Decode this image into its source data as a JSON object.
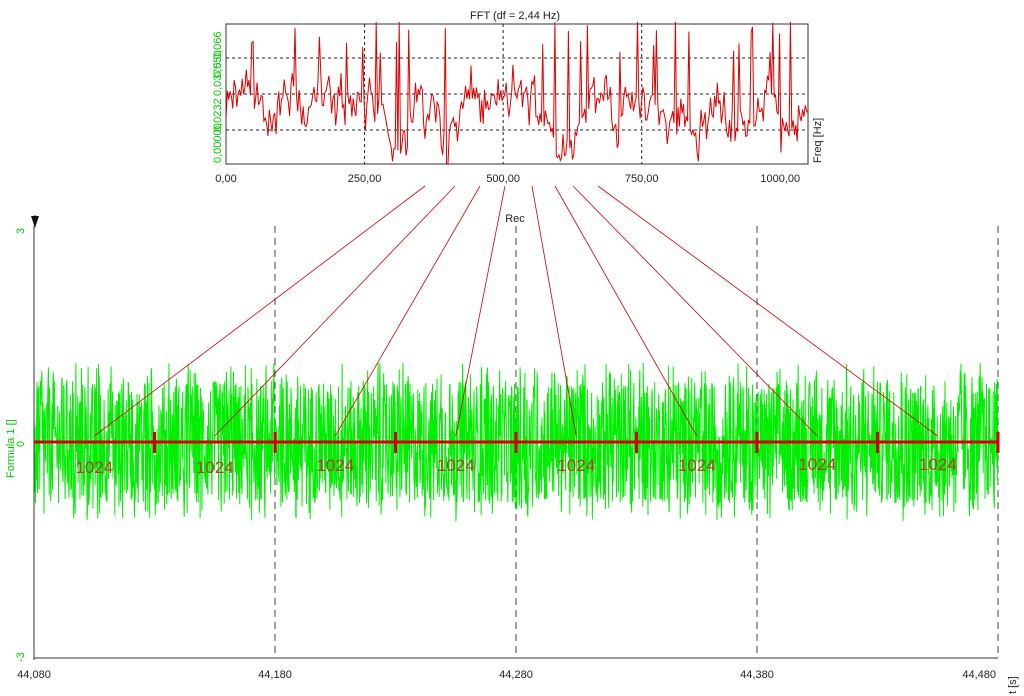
{
  "fft": {
    "title": "FFT (df = 2,44 Hz)",
    "x_unit_label": "Freq [Hz]",
    "x_ticks": [
      "0,00",
      "250,00",
      "500,00",
      "750,00",
      "1000,00"
    ],
    "x_tick_values": [
      0,
      250,
      500,
      750,
      1000
    ],
    "y_ticks": [
      "0,00000",
      "0,0232",
      "0,0375",
      "0,050",
      "0,066"
    ],
    "trace_color": "#e00000"
  },
  "rec": {
    "title": "Rec",
    "y_label": "Formula 1 []",
    "y_max_label": "3",
    "y_zero_label": "0",
    "y_min_label": "-3",
    "x_unit_label": "t [s]",
    "x_ticks": [
      "44,080",
      "44,180",
      "44,280",
      "44,380",
      "44,480"
    ],
    "x_tick_values": [
      44.08,
      44.18,
      44.28,
      44.38,
      44.48
    ],
    "trace_color": "#00ee00"
  },
  "annotation": {
    "block_labels": [
      "1024",
      "1024",
      "1024",
      "1024",
      "1024",
      "1024",
      "1024",
      "1024"
    ],
    "color": "#d40000"
  },
  "chart_data": [
    {
      "type": "line",
      "title": "FFT (df = 2,44 Hz)",
      "xlabel": "Freq [Hz]",
      "ylabel": "",
      "xlim": [
        0,
        1050
      ],
      "ylim": [
        0,
        0.066
      ],
      "x_tick_values": [
        0,
        250,
        500,
        750,
        1000
      ],
      "y_tick_labels": [
        "0,00000",
        "0,0232",
        "0,0375",
        "0,050",
        "0,066"
      ],
      "grid": true,
      "series": [
        {
          "color": "#e00000",
          "description": "noise-like spectrum spanning roughly 0 to 0,066 across the full band"
        }
      ]
    },
    {
      "type": "line",
      "title": "Rec",
      "xlabel": "t [s]",
      "ylabel": "Formula 1 []",
      "xlim": [
        44.08,
        44.48
      ],
      "ylim": [
        -3,
        3
      ],
      "x_tick_values": [
        44.08,
        44.18,
        44.28,
        44.38,
        44.48
      ],
      "grid": true,
      "series": [
        {
          "color": "#00ee00",
          "description": "random noise roughly between -1,1 and 1,1"
        }
      ],
      "blocks": {
        "count": 8,
        "samples_per_block": 1024
      }
    }
  ]
}
